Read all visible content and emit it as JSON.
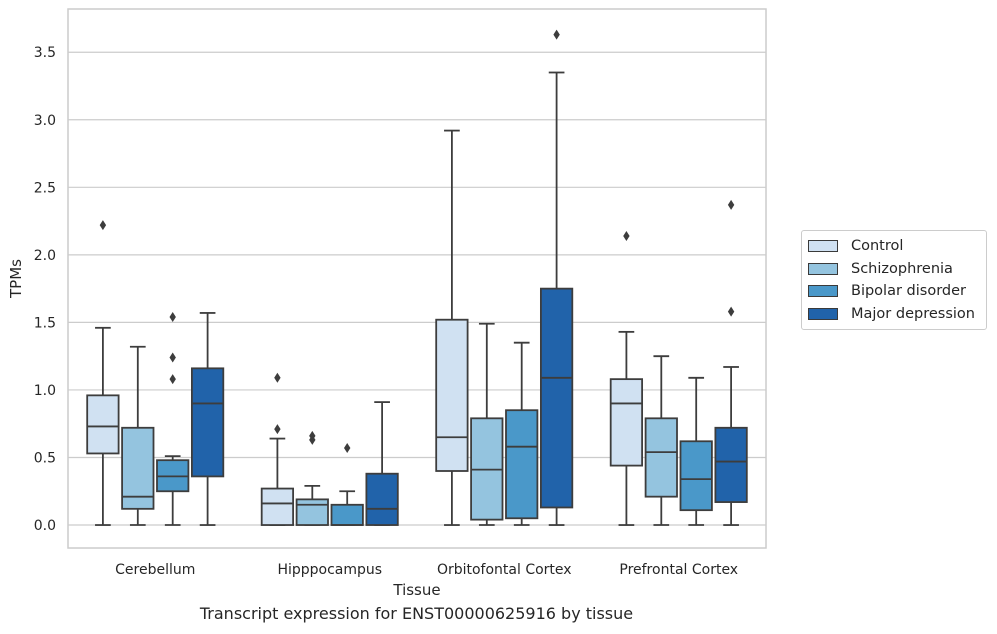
{
  "chart_data": {
    "type": "box",
    "title": "Transcript expression for ENST00000625916 by tissue",
    "xlabel": "Tissue",
    "ylabel": "TPMs",
    "ylim": [
      -0.17,
      3.82
    ],
    "yticks": [
      0.0,
      0.5,
      1.0,
      1.5,
      2.0,
      2.5,
      3.0,
      3.5
    ],
    "ytick_labels": [
      "0.0",
      "0.5",
      "1.0",
      "1.5",
      "2.0",
      "2.5",
      "3.0",
      "3.5"
    ],
    "grid": true,
    "legend_position": "right",
    "categories": [
      "Cerebellum",
      "Hipppocampus",
      "Orbitofontal Cortex",
      "Prefrontal Cortex"
    ],
    "series": [
      {
        "name": "Control",
        "color": "#d0e1f2",
        "boxes": [
          {
            "min": 0.0,
            "q1": 0.53,
            "median": 0.73,
            "q3": 0.96,
            "max": 1.46,
            "outliers": [
              2.22
            ]
          },
          {
            "min": 0.0,
            "q1": 0.0,
            "median": 0.16,
            "q3": 0.27,
            "max": 0.64,
            "outliers": [
              0.71,
              1.09
            ]
          },
          {
            "min": 0.0,
            "q1": 0.4,
            "median": 0.65,
            "q3": 1.52,
            "max": 2.92,
            "outliers": []
          },
          {
            "min": 0.0,
            "q1": 0.44,
            "median": 0.9,
            "q3": 1.08,
            "max": 1.43,
            "outliers": [
              2.14
            ]
          }
        ]
      },
      {
        "name": "Schizophrenia",
        "color": "#94c4df",
        "boxes": [
          {
            "min": 0.0,
            "q1": 0.12,
            "median": 0.21,
            "q3": 0.72,
            "max": 1.32,
            "outliers": []
          },
          {
            "min": 0.0,
            "q1": 0.0,
            "median": 0.15,
            "q3": 0.19,
            "max": 0.29,
            "outliers": [
              0.63,
              0.66
            ]
          },
          {
            "min": 0.0,
            "q1": 0.04,
            "median": 0.41,
            "q3": 0.79,
            "max": 1.49,
            "outliers": []
          },
          {
            "min": 0.0,
            "q1": 0.21,
            "median": 0.54,
            "q3": 0.79,
            "max": 1.25,
            "outliers": []
          }
        ]
      },
      {
        "name": "Bipolar disorder",
        "color": "#4a98c9",
        "boxes": [
          {
            "min": 0.0,
            "q1": 0.25,
            "median": 0.36,
            "q3": 0.48,
            "max": 0.51,
            "outliers": [
              1.08,
              1.24,
              1.54
            ]
          },
          {
            "min": 0.0,
            "q1": 0.0,
            "median": 0.0,
            "q3": 0.15,
            "max": 0.25,
            "outliers": [
              0.57
            ]
          },
          {
            "min": 0.0,
            "q1": 0.05,
            "median": 0.58,
            "q3": 0.85,
            "max": 1.35,
            "outliers": []
          },
          {
            "min": 0.0,
            "q1": 0.11,
            "median": 0.34,
            "q3": 0.62,
            "max": 1.09,
            "outliers": []
          }
        ]
      },
      {
        "name": "Major depression",
        "color": "#2163aa",
        "boxes": [
          {
            "min": 0.0,
            "q1": 0.36,
            "median": 0.9,
            "q3": 1.16,
            "max": 1.57,
            "outliers": []
          },
          {
            "min": 0.0,
            "q1": 0.0,
            "median": 0.12,
            "q3": 0.38,
            "max": 0.91,
            "outliers": []
          },
          {
            "min": 0.0,
            "q1": 0.13,
            "median": 1.09,
            "q3": 1.75,
            "max": 3.35,
            "outliers": [
              3.63
            ]
          },
          {
            "min": 0.0,
            "q1": 0.17,
            "median": 0.47,
            "q3": 0.72,
            "max": 1.17,
            "outliers": [
              1.58,
              2.37
            ]
          }
        ]
      }
    ]
  }
}
